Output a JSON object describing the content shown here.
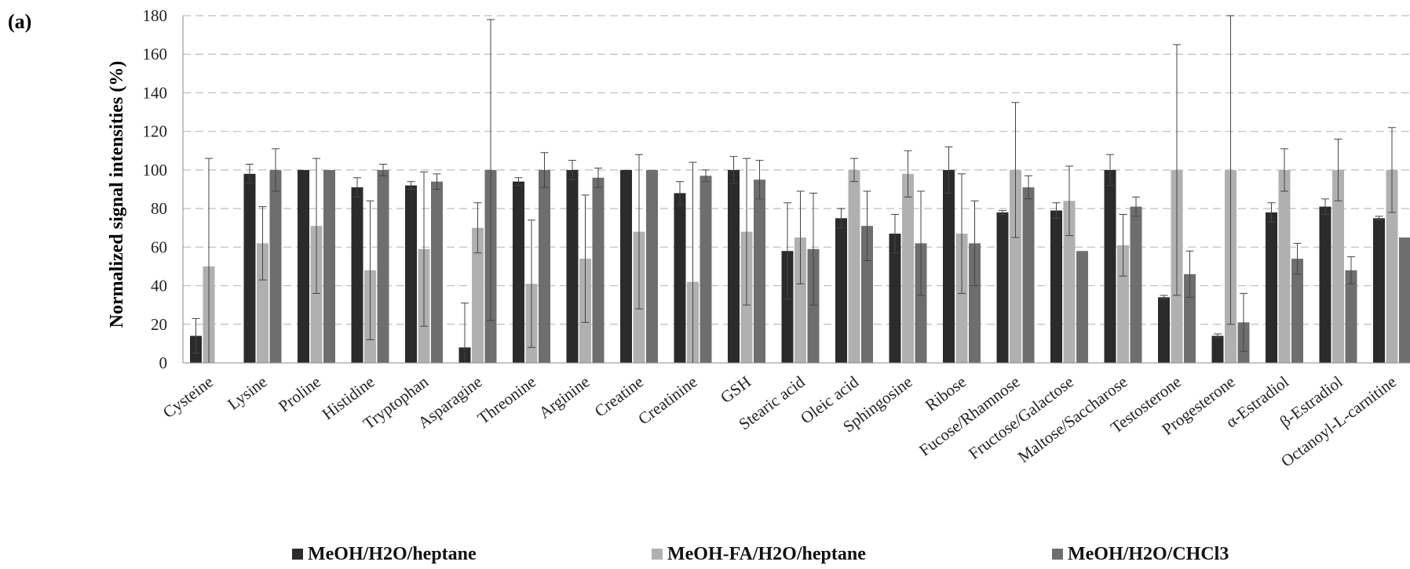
{
  "panel_label": "(a)",
  "chart_data": {
    "type": "bar",
    "title": "",
    "xlabel": "",
    "ylabel": "Normalized signal intensities (%)",
    "ylim": [
      0,
      180
    ],
    "yticks": [
      0,
      20,
      40,
      60,
      80,
      100,
      120,
      140,
      160,
      180
    ],
    "grid": "horizontal-dashed",
    "legend_position": "bottom",
    "error_bars": true,
    "categories": [
      "Cysteine",
      "Lysine",
      "Proline",
      "Histidine",
      "Tryptophan",
      "Asparagine",
      "Threonine",
      "Arginine",
      "Creatine",
      "Creatinine",
      "GSH",
      "Stearic acid",
      "Oleic acid",
      "Sphingosine",
      "Ribose",
      "Fucose/Rhamnose",
      "Fructose/Galactose",
      "Maltose/Saccharose",
      "Testosterone",
      "Progesterone",
      "α-Estradiol",
      "β-Estradiol",
      "Octanoyl-L-carnitine"
    ],
    "series": [
      {
        "name": "MeOH/H2O/heptane",
        "color": "#2b2b2b",
        "values": [
          14,
          98,
          100,
          91,
          92,
          8,
          94,
          100,
          100,
          88,
          100,
          58,
          75,
          67,
          100,
          78,
          79,
          100,
          34,
          14,
          78,
          81,
          75
        ],
        "errors": [
          9,
          5,
          0,
          5,
          2,
          23,
          2,
          5,
          0,
          6,
          7,
          25,
          5,
          10,
          12,
          1,
          4,
          8,
          1,
          1,
          5,
          4,
          1
        ]
      },
      {
        "name": "MeOH-FA/H2O/heptane",
        "color": "#b0b0b0",
        "values": [
          50,
          62,
          71,
          48,
          59,
          70,
          41,
          54,
          68,
          42,
          68,
          65,
          100,
          98,
          67,
          100,
          84,
          61,
          100,
          100,
          100,
          100,
          100
        ],
        "errors": [
          56,
          19,
          35,
          36,
          40,
          13,
          33,
          33,
          40,
          62,
          38,
          24,
          6,
          12,
          31,
          35,
          18,
          16,
          65,
          80,
          11,
          16,
          22
        ]
      },
      {
        "name": "MeOH/H2O/CHCl3",
        "color": "#6e6e6e",
        "values": [
          null,
          100,
          100,
          100,
          94,
          100,
          100,
          96,
          100,
          97,
          95,
          59,
          71,
          62,
          62,
          91,
          58,
          81,
          46,
          21,
          54,
          48,
          65
        ],
        "errors": [
          0,
          11,
          0,
          3,
          4,
          78,
          9,
          5,
          0,
          3,
          10,
          29,
          18,
          27,
          22,
          6,
          0,
          5,
          12,
          15,
          8,
          7,
          0
        ]
      }
    ]
  }
}
